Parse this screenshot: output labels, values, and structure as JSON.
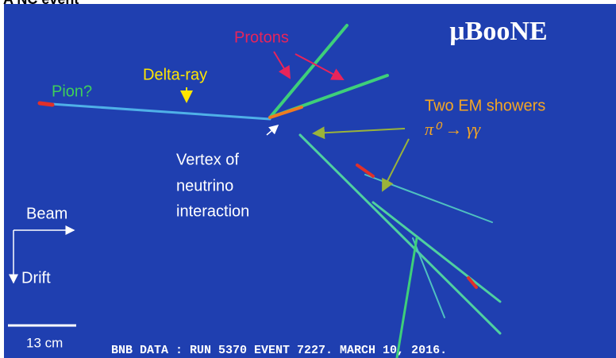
{
  "header": {
    "title": "A NC event"
  },
  "logo": "μBooNE",
  "labels": {
    "protons": "Protons",
    "delta_ray": "Delta-ray",
    "pion": "Pion?",
    "showers": "Two EM showers",
    "pi0": "π⁰ → γγ",
    "vertex": [
      "Vertex of",
      "neutrino",
      "interaction"
    ],
    "beam": "Beam",
    "drift": "Drift",
    "scale": "13 cm"
  },
  "footer": "BNB DATA : RUN 5370 EVENT 7227. MARCH 10, 2016."
}
